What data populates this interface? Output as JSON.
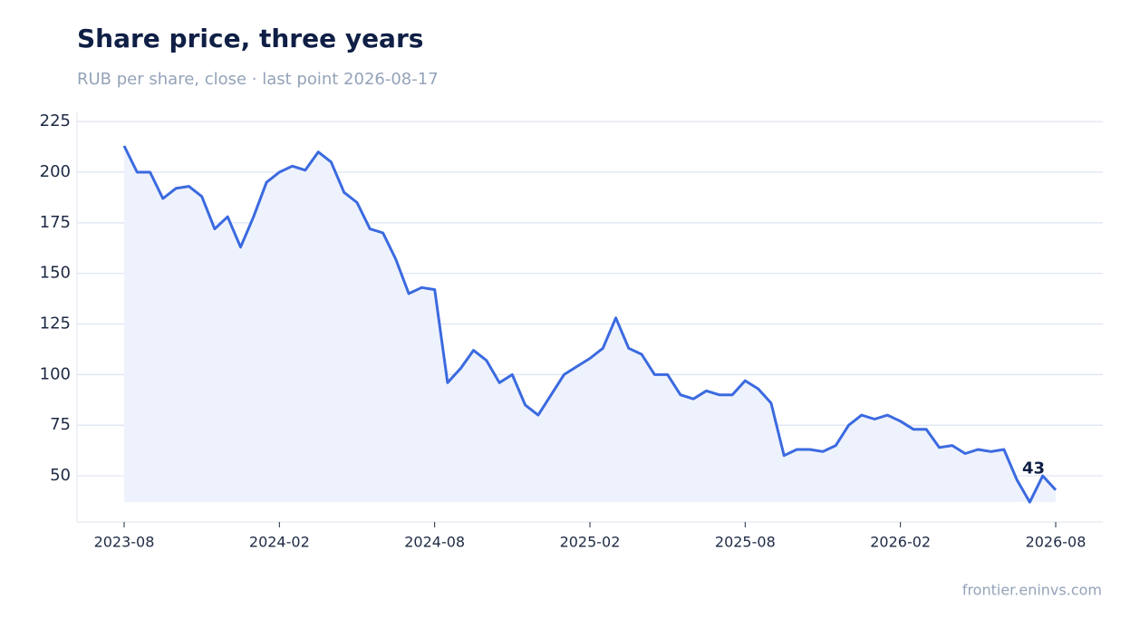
{
  "chart_data": {
    "type": "line",
    "title": "Share price, three years",
    "subtitle": "RUB per share, close · last point 2026-08-17",
    "source": "frontier.eninvs.com",
    "color": "#3b6ae0",
    "x": [
      "2023-08",
      "2023-08",
      "2023-09",
      "2023-09",
      "2023-10",
      "2023-10",
      "2023-11",
      "2023-11",
      "2023-12",
      "2023-12",
      "2024-01",
      "2024-01",
      "2024-02",
      "2024-02",
      "2024-03",
      "2024-03",
      "2024-04",
      "2024-04",
      "2024-05",
      "2024-05",
      "2024-06",
      "2024-06",
      "2024-07",
      "2024-07",
      "2024-08",
      "2024-08",
      "2024-09",
      "2024-09",
      "2024-10",
      "2024-10",
      "2024-11",
      "2024-11",
      "2024-12",
      "2024-12",
      "2025-01",
      "2025-01",
      "2025-02",
      "2025-02",
      "2025-03",
      "2025-03",
      "2025-04",
      "2025-04",
      "2025-05",
      "2025-05",
      "2025-06",
      "2025-06",
      "2025-07",
      "2025-07",
      "2025-08",
      "2025-08",
      "2025-09",
      "2025-09",
      "2025-10",
      "2025-10",
      "2025-11",
      "2025-11",
      "2025-12",
      "2025-12",
      "2026-01",
      "2026-01",
      "2026-02",
      "2026-02",
      "2026-03",
      "2026-03",
      "2026-04",
      "2026-04",
      "2026-05",
      "2026-05",
      "2026-06",
      "2026-06",
      "2026-07",
      "2026-07",
      "2026-08"
    ],
    "values": [
      213,
      200,
      200,
      187,
      192,
      193,
      188,
      172,
      178,
      163,
      178,
      195,
      200,
      203,
      201,
      210,
      205,
      190,
      185,
      172,
      170,
      157,
      140,
      143,
      142,
      96,
      103,
      112,
      107,
      96,
      100,
      85,
      80,
      90,
      100,
      104,
      108,
      113,
      128,
      113,
      110,
      100,
      100,
      90,
      88,
      92,
      90,
      90,
      97,
      93,
      86,
      60,
      63,
      63,
      62,
      65,
      75,
      80,
      78,
      80,
      77,
      73,
      73,
      64,
      65,
      61,
      63,
      62,
      63,
      48,
      37,
      50,
      43
    ],
    "xticks": [
      "2023-08",
      "2024-02",
      "2024-08",
      "2025-02",
      "2025-08",
      "2026-02",
      "2026-08"
    ],
    "ylim": [
      27.2,
      230
    ],
    "yticks": [
      50,
      75,
      100,
      125,
      150,
      175,
      200,
      225
    ],
    "grid": true
  }
}
